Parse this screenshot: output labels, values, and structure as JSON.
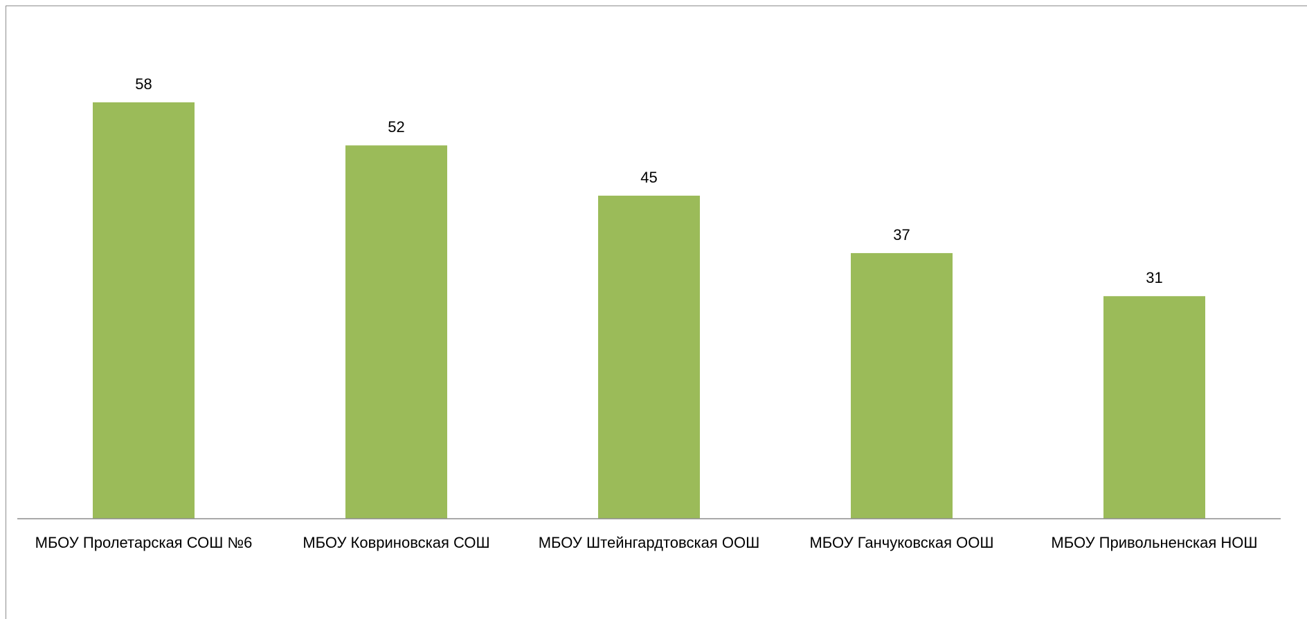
{
  "chart_data": {
    "type": "bar",
    "categories": [
      "МБОУ Пролетарская СОШ №6",
      "МБОУ Ковриновская СОШ",
      "МБОУ Штейнгардтовская ООШ",
      "МБОУ Ганчуковская ООШ",
      "МБОУ Привольненская НОШ"
    ],
    "values": [
      58,
      52,
      45,
      37,
      31
    ],
    "title": "",
    "xlabel": "",
    "ylabel": "",
    "ylim": [
      0,
      72
    ],
    "data_labels": true,
    "grid": false,
    "legend": "none",
    "colors": {
      "bar": "#9bbb59",
      "axis": "#8c8c8c",
      "frame": "#8c8c8c"
    }
  }
}
